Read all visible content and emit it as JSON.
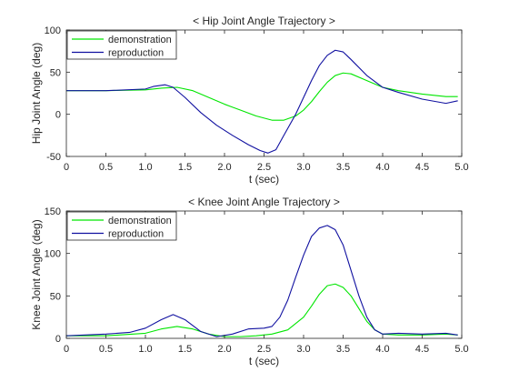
{
  "chart_data": [
    {
      "type": "line",
      "title": "< Hip Joint Angle Trajectory >",
      "xlabel": "t (sec)",
      "ylabel": "Hip Joint Angle (deg)",
      "xlim": [
        0,
        5
      ],
      "ylim": [
        -50,
        100
      ],
      "xticks": [
        0,
        0.5,
        1,
        1.5,
        2,
        2.5,
        3,
        3.5,
        4,
        4.5,
        5
      ],
      "yticks": [
        -50,
        0,
        50,
        100
      ],
      "xtick_labels": [
        "0",
        "0.5",
        "1.0",
        "1.5",
        "2.0",
        "2.5",
        "3.0",
        "3.5",
        "4.0",
        "4.5",
        "5.0"
      ],
      "ytick_labels": [
        "-50",
        "0",
        "50",
        "100"
      ],
      "grid": false,
      "legend_position": "top-left",
      "series": [
        {
          "name": "demonstration",
          "color": "#00e600",
          "x": [
            0,
            0.5,
            1.0,
            1.2,
            1.4,
            1.6,
            1.8,
            2.0,
            2.2,
            2.4,
            2.6,
            2.75,
            2.9,
            3.0,
            3.1,
            3.2,
            3.3,
            3.4,
            3.5,
            3.6,
            3.8,
            4.0,
            4.2,
            4.5,
            4.8,
            4.95
          ],
          "y": [
            28,
            28,
            29,
            31,
            32,
            28,
            20,
            12,
            5,
            -2,
            -7,
            -7,
            -2,
            5,
            15,
            27,
            38,
            46,
            49,
            48,
            40,
            32,
            28,
            24,
            21,
            21
          ]
        },
        {
          "name": "reproduction",
          "color": "#1010a0",
          "x": [
            0,
            0.5,
            1.0,
            1.1,
            1.25,
            1.35,
            1.5,
            1.7,
            1.9,
            2.1,
            2.3,
            2.45,
            2.55,
            2.65,
            2.75,
            2.9,
            3.0,
            3.1,
            3.2,
            3.3,
            3.4,
            3.5,
            3.6,
            3.8,
            4.0,
            4.2,
            4.5,
            4.8,
            4.95
          ],
          "y": [
            28,
            28,
            30,
            33,
            35,
            32,
            20,
            2,
            -13,
            -25,
            -36,
            -43,
            -46,
            -42,
            -25,
            0,
            20,
            40,
            58,
            70,
            76,
            74,
            65,
            46,
            32,
            26,
            18,
            13,
            16
          ]
        }
      ]
    },
    {
      "type": "line",
      "title": "< Knee Joint Angle Trajectory >",
      "xlabel": "t (sec)",
      "ylabel": "Knee Joint Angle (deg)",
      "xlim": [
        0,
        5
      ],
      "ylim": [
        0,
        150
      ],
      "xticks": [
        0,
        0.5,
        1,
        1.5,
        2,
        2.5,
        3,
        3.5,
        4,
        4.5,
        5
      ],
      "yticks": [
        0,
        50,
        100,
        150
      ],
      "xtick_labels": [
        "0",
        "0.5",
        "1.0",
        "1.5",
        "2.0",
        "2.5",
        "3.0",
        "3.5",
        "4.0",
        "4.5",
        "5.0"
      ],
      "ytick_labels": [
        "0",
        "50",
        "100",
        "150"
      ],
      "grid": false,
      "legend_position": "top-left",
      "series": [
        {
          "name": "demonstration",
          "color": "#00e600",
          "x": [
            0,
            0.5,
            1.0,
            1.2,
            1.4,
            1.6,
            1.8,
            2.0,
            2.2,
            2.4,
            2.6,
            2.8,
            3.0,
            3.1,
            3.2,
            3.3,
            3.4,
            3.5,
            3.6,
            3.7,
            3.8,
            3.9,
            4.0,
            4.2,
            4.5,
            4.8,
            4.95
          ],
          "y": [
            3,
            3,
            6,
            11,
            14,
            11,
            5,
            2,
            2,
            3,
            5,
            10,
            25,
            38,
            52,
            62,
            64,
            60,
            50,
            35,
            20,
            10,
            5,
            4,
            4,
            5,
            4
          ]
        },
        {
          "name": "reproduction",
          "color": "#1010a0",
          "x": [
            0,
            0.5,
            0.8,
            1.0,
            1.2,
            1.35,
            1.5,
            1.7,
            1.9,
            2.1,
            2.3,
            2.5,
            2.6,
            2.7,
            2.8,
            2.9,
            3.0,
            3.1,
            3.2,
            3.3,
            3.4,
            3.5,
            3.6,
            3.7,
            3.8,
            3.9,
            4.0,
            4.2,
            4.5,
            4.8,
            4.95
          ],
          "y": [
            3,
            5,
            7,
            12,
            22,
            28,
            22,
            8,
            2,
            5,
            11,
            12,
            14,
            25,
            45,
            72,
            98,
            120,
            130,
            133,
            128,
            110,
            80,
            50,
            25,
            10,
            5,
            6,
            5,
            6,
            4
          ]
        }
      ]
    }
  ]
}
